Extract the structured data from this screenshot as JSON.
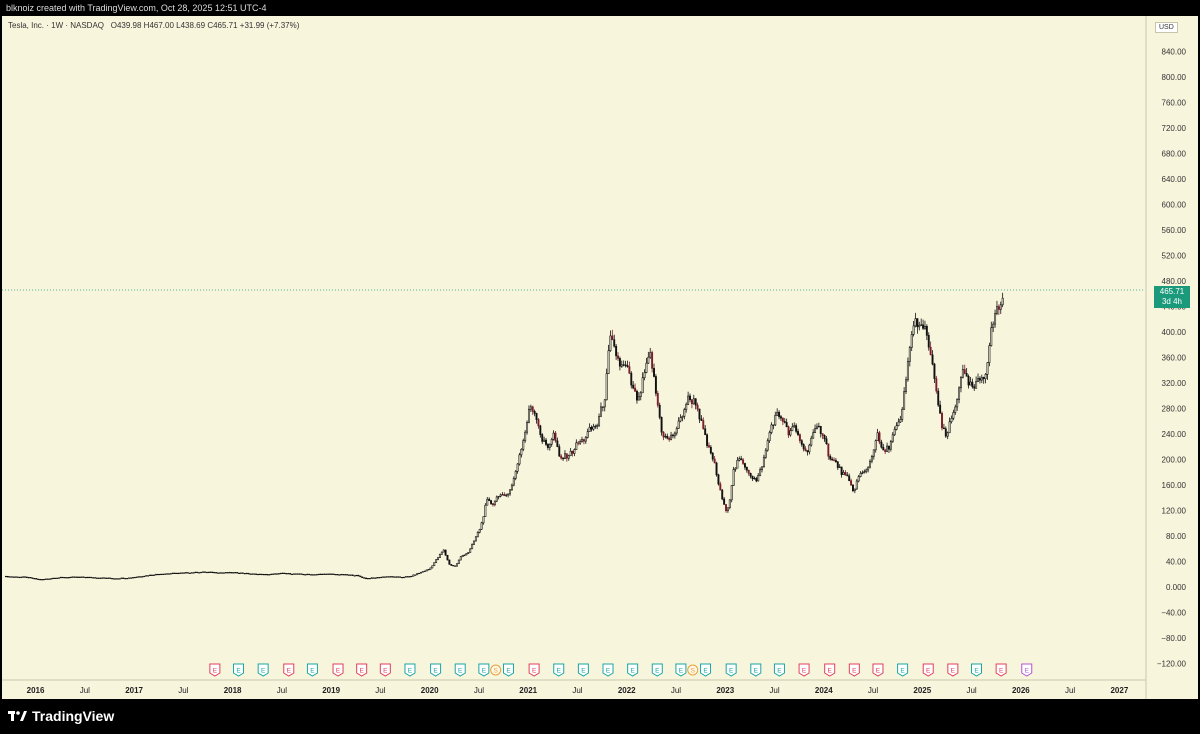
{
  "header": {
    "caption": "blknoiz created with TradingView.com, Oct 28, 2025 12:51 UTC-4"
  },
  "legend": {
    "symbol": "Tesla, Inc. · 1W · NASDAQ",
    "open": "O439.98",
    "high": "H467.00",
    "low": "L438.69",
    "close": "C465.71",
    "change": "+31.99 (+7.37%)"
  },
  "currency": "USD",
  "last_price": {
    "value": "465.71",
    "countdown": "3d 4h",
    "color": "#1a9a7a"
  },
  "brand": {
    "name": "TradingView"
  },
  "colors": {
    "background": "#f8f5dd",
    "candle": "#111111",
    "down_candle_accent": "#7a1e2a",
    "earnings_red": "#e0405a",
    "earnings_teal": "#1aa5a5",
    "split_orange": "#e8a23a",
    "future_purple": "#b455d6"
  },
  "chart_data": {
    "type": "candlestick",
    "interval": "1W",
    "y_ticks": [
      "−120.00",
      "−80.00",
      "−40.00",
      "0.000",
      "40.00",
      "80.00",
      "120.00",
      "160.00",
      "200.00",
      "240.00",
      "280.00",
      "320.00",
      "360.00",
      "400.00",
      "440.00",
      "480.00",
      "520.00",
      "560.00",
      "600.00",
      "640.00",
      "680.00",
      "720.00",
      "760.00",
      "800.00",
      "840.00"
    ],
    "y_tick_values": [
      -120,
      -80,
      -40,
      0,
      40,
      80,
      120,
      160,
      200,
      240,
      280,
      320,
      360,
      400,
      440,
      480,
      520,
      560,
      600,
      640,
      680,
      720,
      760,
      800,
      840
    ],
    "ylim": [
      -140,
      880
    ],
    "x_ticks": [
      {
        "label": "2016",
        "t": 2016.0,
        "bold": true
      },
      {
        "label": "Jul",
        "t": 2016.5,
        "bold": false
      },
      {
        "label": "2017",
        "t": 2017.0,
        "bold": true
      },
      {
        "label": "Jul",
        "t": 2017.5,
        "bold": false
      },
      {
        "label": "2018",
        "t": 2018.0,
        "bold": true
      },
      {
        "label": "Jul",
        "t": 2018.5,
        "bold": false
      },
      {
        "label": "2019",
        "t": 2019.0,
        "bold": true
      },
      {
        "label": "Jul",
        "t": 2019.5,
        "bold": false
      },
      {
        "label": "2020",
        "t": 2020.0,
        "bold": true
      },
      {
        "label": "Jul",
        "t": 2020.5,
        "bold": false
      },
      {
        "label": "2021",
        "t": 2021.0,
        "bold": true
      },
      {
        "label": "Jul",
        "t": 2021.5,
        "bold": false
      },
      {
        "label": "2022",
        "t": 2022.0,
        "bold": true
      },
      {
        "label": "Jul",
        "t": 2022.5,
        "bold": false
      },
      {
        "label": "2023",
        "t": 2023.0,
        "bold": true
      },
      {
        "label": "Jul",
        "t": 2023.5,
        "bold": false
      },
      {
        "label": "2024",
        "t": 2024.0,
        "bold": true
      },
      {
        "label": "Jul",
        "t": 2024.5,
        "bold": false
      },
      {
        "label": "2025",
        "t": 2025.0,
        "bold": true
      },
      {
        "label": "Jul",
        "t": 2025.5,
        "bold": false
      },
      {
        "label": "2026",
        "t": 2026.0,
        "bold": true
      },
      {
        "label": "Jul",
        "t": 2026.5,
        "bold": false
      },
      {
        "label": "2027",
        "t": 2027.0,
        "bold": true
      }
    ],
    "xlim": [
      2015.7,
      2027.25
    ],
    "price_series": [
      [
        2015.7,
        16
      ],
      [
        2015.9,
        15
      ],
      [
        2016.05,
        11
      ],
      [
        2016.2,
        14
      ],
      [
        2016.35,
        15
      ],
      [
        2016.5,
        15
      ],
      [
        2016.65,
        14
      ],
      [
        2016.8,
        13
      ],
      [
        2016.95,
        14
      ],
      [
        2017.1,
        17
      ],
      [
        2017.25,
        20
      ],
      [
        2017.4,
        21
      ],
      [
        2017.55,
        22
      ],
      [
        2017.7,
        23
      ],
      [
        2017.9,
        22
      ],
      [
        2018.05,
        22
      ],
      [
        2018.2,
        20
      ],
      [
        2018.35,
        19
      ],
      [
        2018.5,
        21
      ],
      [
        2018.65,
        20
      ],
      [
        2018.8,
        19
      ],
      [
        2018.95,
        20
      ],
      [
        2019.1,
        19
      ],
      [
        2019.25,
        18
      ],
      [
        2019.35,
        13
      ],
      [
        2019.45,
        14
      ],
      [
        2019.55,
        16
      ],
      [
        2019.7,
        15
      ],
      [
        2019.8,
        16
      ],
      [
        2019.9,
        22
      ],
      [
        2020.0,
        28
      ],
      [
        2020.08,
        45
      ],
      [
        2020.14,
        58
      ],
      [
        2020.2,
        35
      ],
      [
        2020.26,
        32
      ],
      [
        2020.32,
        48
      ],
      [
        2020.4,
        55
      ],
      [
        2020.46,
        75
      ],
      [
        2020.52,
        95
      ],
      [
        2020.58,
        135
      ],
      [
        2020.64,
        130
      ],
      [
        2020.7,
        145
      ],
      [
        2020.76,
        140
      ],
      [
        2020.84,
        160
      ],
      [
        2020.9,
        200
      ],
      [
        2020.96,
        235
      ],
      [
        2021.02,
        285
      ],
      [
        2021.08,
        270
      ],
      [
        2021.14,
        230
      ],
      [
        2021.2,
        220
      ],
      [
        2021.26,
        240
      ],
      [
        2021.32,
        200
      ],
      [
        2021.38,
        205
      ],
      [
        2021.44,
        210
      ],
      [
        2021.5,
        225
      ],
      [
        2021.56,
        230
      ],
      [
        2021.62,
        245
      ],
      [
        2021.7,
        255
      ],
      [
        2021.78,
        300
      ],
      [
        2021.83,
        390
      ],
      [
        2021.88,
        370
      ],
      [
        2021.94,
        345
      ],
      [
        2022.0,
        345
      ],
      [
        2022.06,
        310
      ],
      [
        2022.12,
        290
      ],
      [
        2022.18,
        335
      ],
      [
        2022.24,
        365
      ],
      [
        2022.3,
        300
      ],
      [
        2022.36,
        240
      ],
      [
        2022.42,
        230
      ],
      [
        2022.48,
        240
      ],
      [
        2022.54,
        260
      ],
      [
        2022.62,
        295
      ],
      [
        2022.7,
        290
      ],
      [
        2022.76,
        255
      ],
      [
        2022.82,
        220
      ],
      [
        2022.88,
        200
      ],
      [
        2022.94,
        155
      ],
      [
        2023.0,
        120
      ],
      [
        2023.04,
        130
      ],
      [
        2023.08,
        180
      ],
      [
        2023.14,
        200
      ],
      [
        2023.2,
        190
      ],
      [
        2023.26,
        175
      ],
      [
        2023.32,
        165
      ],
      [
        2023.4,
        205
      ],
      [
        2023.46,
        250
      ],
      [
        2023.52,
        270
      ],
      [
        2023.58,
        265
      ],
      [
        2023.64,
        240
      ],
      [
        2023.7,
        250
      ],
      [
        2023.76,
        230
      ],
      [
        2023.82,
        210
      ],
      [
        2023.88,
        235
      ],
      [
        2023.94,
        250
      ],
      [
        2024.0,
        240
      ],
      [
        2024.06,
        200
      ],
      [
        2024.12,
        195
      ],
      [
        2024.18,
        180
      ],
      [
        2024.24,
        170
      ],
      [
        2024.3,
        150
      ],
      [
        2024.36,
        175
      ],
      [
        2024.42,
        180
      ],
      [
        2024.48,
        200
      ],
      [
        2024.54,
        240
      ],
      [
        2024.6,
        210
      ],
      [
        2024.66,
        220
      ],
      [
        2024.72,
        245
      ],
      [
        2024.78,
        260
      ],
      [
        2024.84,
        330
      ],
      [
        2024.88,
        390
      ],
      [
        2024.94,
        420
      ],
      [
        2025.0,
        400
      ],
      [
        2025.04,
        405
      ],
      [
        2025.08,
        360
      ],
      [
        2025.12,
        335
      ],
      [
        2025.16,
        285
      ],
      [
        2025.2,
        250
      ],
      [
        2025.24,
        235
      ],
      [
        2025.28,
        255
      ],
      [
        2025.34,
        285
      ],
      [
        2025.4,
        340
      ],
      [
        2025.46,
        320
      ],
      [
        2025.52,
        310
      ],
      [
        2025.58,
        325
      ],
      [
        2025.64,
        335
      ],
      [
        2025.7,
        400
      ],
      [
        2025.74,
        430
      ],
      [
        2025.78,
        440
      ],
      [
        2025.82,
        450
      ],
      [
        2025.83,
        465.71
      ]
    ],
    "earnings_markers": [
      {
        "t": 2017.82,
        "kind": "E",
        "color": "#e0405a"
      },
      {
        "t": 2018.06,
        "kind": "E",
        "color": "#1aa5a5"
      },
      {
        "t": 2018.31,
        "kind": "E",
        "color": "#1aa5a5"
      },
      {
        "t": 2018.57,
        "kind": "E",
        "color": "#e0405a"
      },
      {
        "t": 2018.81,
        "kind": "E",
        "color": "#1aa5a5"
      },
      {
        "t": 2019.07,
        "kind": "E",
        "color": "#e0405a"
      },
      {
        "t": 2019.31,
        "kind": "E",
        "color": "#e0405a"
      },
      {
        "t": 2019.55,
        "kind": "E",
        "color": "#e0405a"
      },
      {
        "t": 2019.8,
        "kind": "E",
        "color": "#1aa5a5"
      },
      {
        "t": 2020.06,
        "kind": "E",
        "color": "#1aa5a5"
      },
      {
        "t": 2020.31,
        "kind": "E",
        "color": "#1aa5a5"
      },
      {
        "t": 2020.55,
        "kind": "E",
        "color": "#1aa5a5"
      },
      {
        "t": 2020.67,
        "kind": "S",
        "color": "#e8a23a"
      },
      {
        "t": 2020.8,
        "kind": "E",
        "color": "#1aa5a5"
      },
      {
        "t": 2021.06,
        "kind": "E",
        "color": "#e0405a"
      },
      {
        "t": 2021.31,
        "kind": "E",
        "color": "#1aa5a5"
      },
      {
        "t": 2021.56,
        "kind": "E",
        "color": "#1aa5a5"
      },
      {
        "t": 2021.81,
        "kind": "E",
        "color": "#1aa5a5"
      },
      {
        "t": 2022.06,
        "kind": "E",
        "color": "#1aa5a5"
      },
      {
        "t": 2022.31,
        "kind": "E",
        "color": "#1aa5a5"
      },
      {
        "t": 2022.55,
        "kind": "E",
        "color": "#1aa5a5"
      },
      {
        "t": 2022.67,
        "kind": "S",
        "color": "#e8a23a"
      },
      {
        "t": 2022.8,
        "kind": "E",
        "color": "#1aa5a5"
      },
      {
        "t": 2023.06,
        "kind": "E",
        "color": "#1aa5a5"
      },
      {
        "t": 2023.31,
        "kind": "E",
        "color": "#1aa5a5"
      },
      {
        "t": 2023.55,
        "kind": "E",
        "color": "#1aa5a5"
      },
      {
        "t": 2023.8,
        "kind": "E",
        "color": "#e0405a"
      },
      {
        "t": 2024.06,
        "kind": "E",
        "color": "#e0405a"
      },
      {
        "t": 2024.31,
        "kind": "E",
        "color": "#e0405a"
      },
      {
        "t": 2024.55,
        "kind": "E",
        "color": "#e0405a"
      },
      {
        "t": 2024.8,
        "kind": "E",
        "color": "#1aa5a5"
      },
      {
        "t": 2025.06,
        "kind": "E",
        "color": "#e0405a"
      },
      {
        "t": 2025.31,
        "kind": "E",
        "color": "#e0405a"
      },
      {
        "t": 2025.55,
        "kind": "E",
        "color": "#1aa5a5"
      },
      {
        "t": 2025.8,
        "kind": "E",
        "color": "#e0405a"
      },
      {
        "t": 2026.06,
        "kind": "E",
        "color": "#b455d6"
      }
    ]
  }
}
